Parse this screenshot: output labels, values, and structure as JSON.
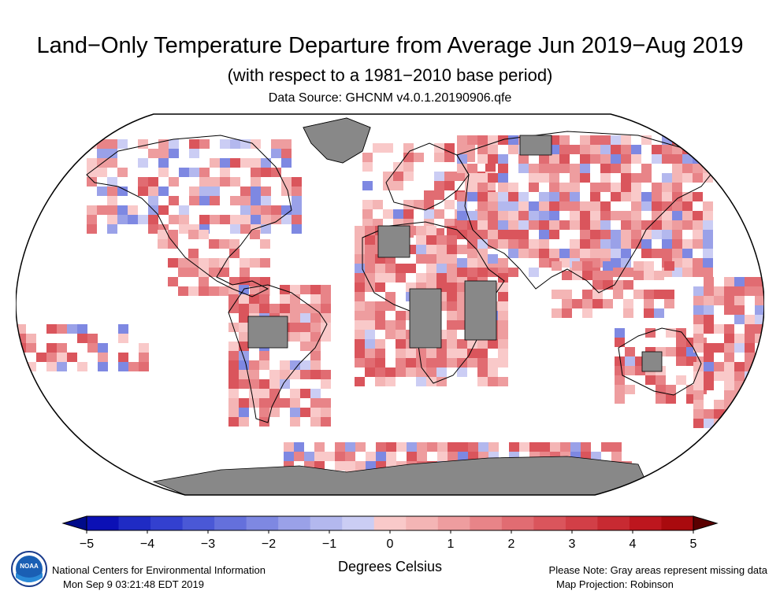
{
  "header": {
    "title": "Land−Only Temperature Departure from Average Jun 2019−Aug 2019",
    "subtitle": "(with respect to a 1981−2010 base period)",
    "source": "Data Source: GHCNM v4.0.1.20190906.qfe"
  },
  "colorbar": {
    "unit_label": "Degrees Celsius",
    "range": [
      -5,
      5
    ],
    "ticks": [
      "−5",
      "−4",
      "−3",
      "−2",
      "−1",
      "0",
      "1",
      "2",
      "3",
      "4",
      "5"
    ],
    "colors": [
      "#0b10b5",
      "#1f2bc4",
      "#3340cf",
      "#4a58d6",
      "#6470dc",
      "#7e88e2",
      "#9aa1e8",
      "#b3b8ee",
      "#cbcdf4",
      "#f9c9c9",
      "#f4b5b5",
      "#ee9d9f",
      "#e88488",
      "#e16c72",
      "#da555c",
      "#d23f47",
      "#c82a32",
      "#bd161e",
      "#a90a0e"
    ],
    "missing_color": "#888888"
  },
  "footer": {
    "org": "National Centers for Environmental Information",
    "timestamp": "Mon Sep  9 03:21:48 EDT 2019",
    "note": "Please Note: Gray areas represent missing data",
    "projection": "Map Projection: Robinson",
    "logo_text": "NOAA"
  }
}
